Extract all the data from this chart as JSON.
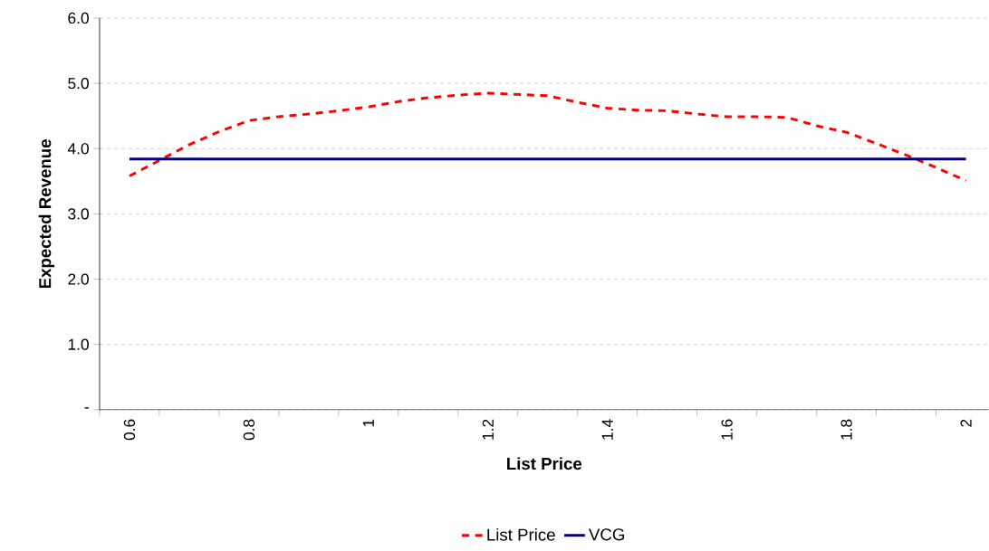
{
  "chart_data": {
    "type": "line",
    "xlabel": "List Price",
    "ylabel": "Expected Revenue",
    "categories": [
      "0.6",
      null,
      null,
      null,
      "0.8",
      null,
      null,
      null,
      "1",
      null,
      null,
      null,
      "1.2",
      null,
      null,
      null,
      "1.4",
      null,
      null,
      null,
      "1.6",
      null,
      null,
      null,
      "1.8",
      null,
      null,
      null,
      "2"
    ],
    "series": [
      {
        "name": "List Price",
        "color": "#ff0000",
        "line_style": "dashed",
        "values": [
          3.58,
          3.82,
          4.06,
          4.26,
          4.43,
          4.49,
          4.53,
          4.58,
          4.64,
          4.72,
          4.78,
          4.82,
          4.85,
          4.83,
          4.81,
          4.71,
          4.62,
          4.59,
          4.58,
          4.53,
          4.49,
          4.49,
          4.48,
          4.35,
          4.25,
          4.08,
          3.9,
          3.71,
          3.51
        ]
      },
      {
        "name": "VCG",
        "color": "#000080",
        "line_style": "solid",
        "values": [
          3.84,
          3.84,
          3.84,
          3.84,
          3.84,
          3.84,
          3.84,
          3.84,
          3.84,
          3.84,
          3.84,
          3.84,
          3.84,
          3.84,
          3.84,
          3.84,
          3.84,
          3.84,
          3.84,
          3.84,
          3.84,
          3.84,
          3.84,
          3.84,
          3.84,
          3.84,
          3.84,
          3.84,
          3.84
        ]
      }
    ],
    "ylim": [
      0,
      6
    ],
    "yticks": [
      {
        "value": 0,
        "label": "-"
      },
      {
        "value": 1,
        "label": "1.0"
      },
      {
        "value": 2,
        "label": "2.0"
      },
      {
        "value": 3,
        "label": "3.0"
      },
      {
        "value": 4,
        "label": "4.0"
      },
      {
        "value": 5,
        "label": "5.0"
      },
      {
        "value": 6,
        "label": "6.0"
      }
    ],
    "grid": "y",
    "legend": "bottom",
    "marker": "none"
  }
}
